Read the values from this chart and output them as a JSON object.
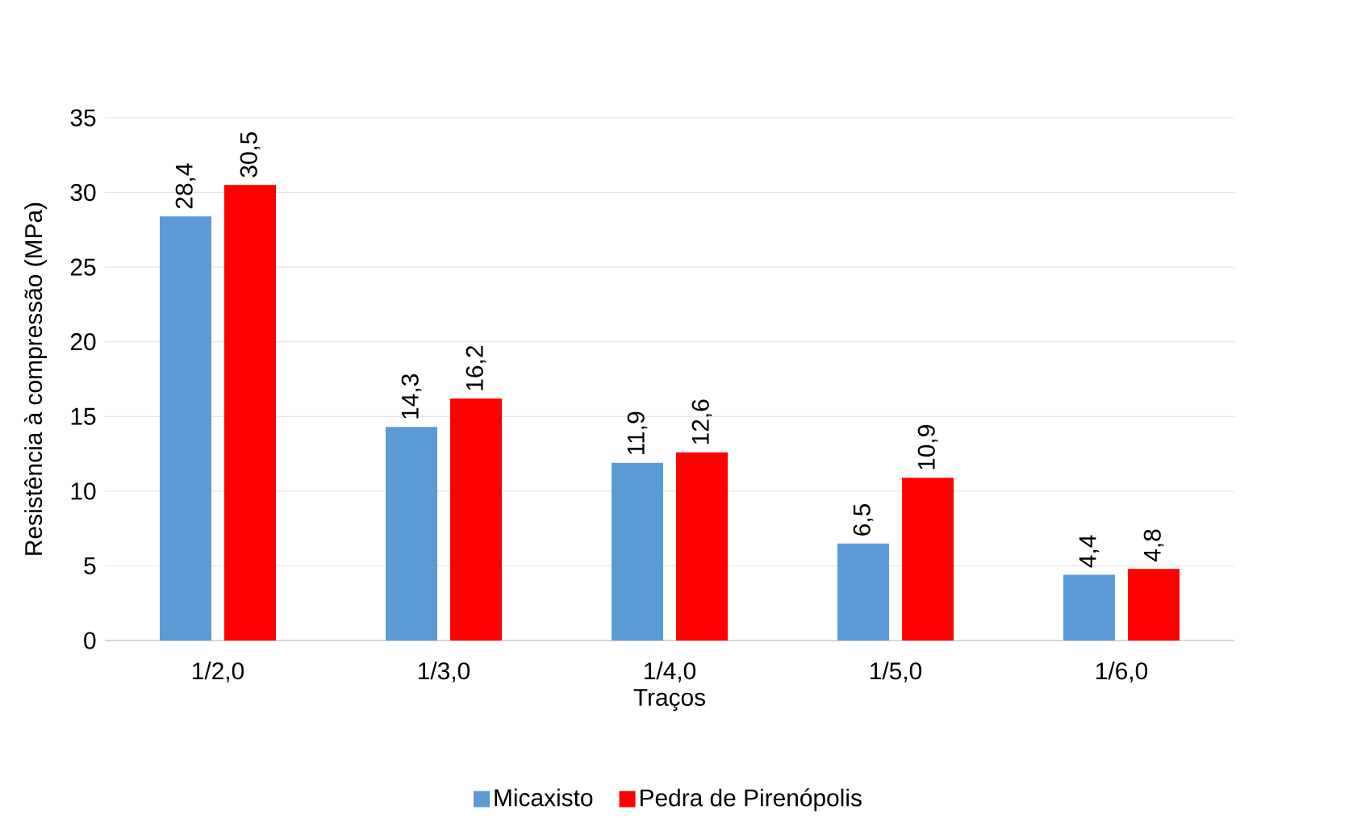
{
  "chart_data": {
    "type": "bar",
    "xlabel": "Traços",
    "ylabel": "Resistência à compressão (MPa)",
    "categories": [
      "1/2,0",
      "1/3,0",
      "1/4,0",
      "1/5,0",
      "1/6,0"
    ],
    "series": [
      {
        "name": "Micaxisto",
        "color": "#5b9bd5",
        "values": [
          28.4,
          14.3,
          11.9,
          6.5,
          4.4
        ],
        "value_labels": [
          "28,4",
          "14,3",
          "11,9",
          "6,5",
          "4,4"
        ]
      },
      {
        "name": "Pedra de Pirenópolis",
        "color": "#ff0000",
        "values": [
          30.5,
          16.2,
          12.6,
          10.9,
          4.8
        ],
        "value_labels": [
          "30,5",
          "16,2",
          "12,6",
          "10,9",
          "4,8"
        ]
      }
    ],
    "ylim": [
      0,
      35
    ],
    "yticks": [
      0,
      5,
      10,
      15,
      20,
      25,
      30,
      35
    ],
    "grid": "y",
    "legend": "bottom"
  }
}
